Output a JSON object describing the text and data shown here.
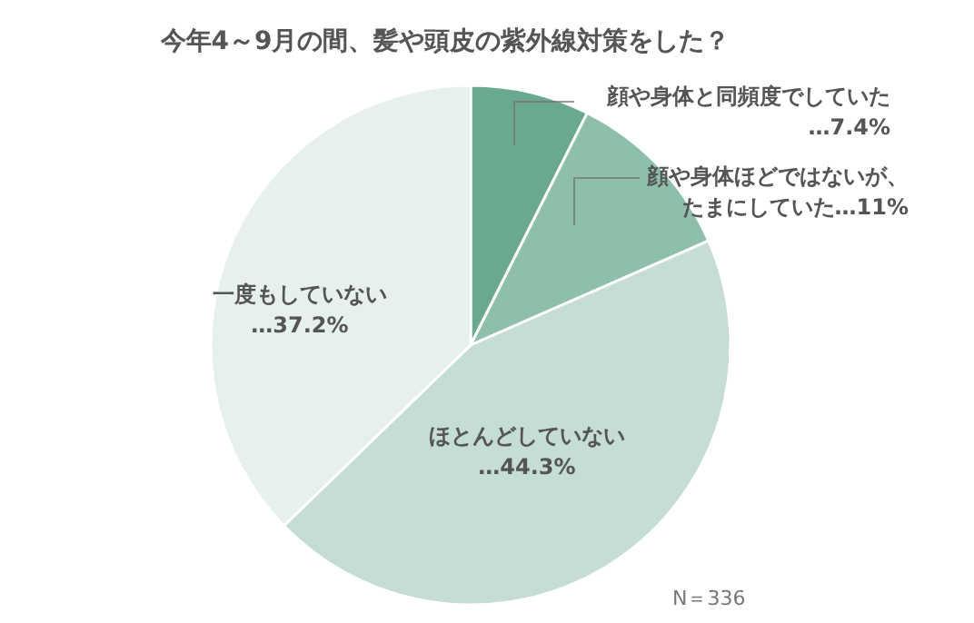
{
  "chart_data": {
    "type": "pie",
    "title": "今年4～9月の間、髪や頭皮の紫外線対策をした？",
    "categories": [
      "顔や身体と同頻度でしていた",
      "顔や身体ほどではないが、たまにしていた",
      "ほとんどしていない",
      "一度もしていない"
    ],
    "values": [
      7.4,
      11,
      44.3,
      37.2
    ],
    "value_labels": [
      "…7.4%",
      "…11%",
      "…44.3%",
      "…37.2%"
    ],
    "colors": [
      "#6aa98f",
      "#8dbfab",
      "#c5ddd3",
      "#e6f0ec"
    ],
    "annotations": [
      "N＝336"
    ],
    "legend": false
  }
}
